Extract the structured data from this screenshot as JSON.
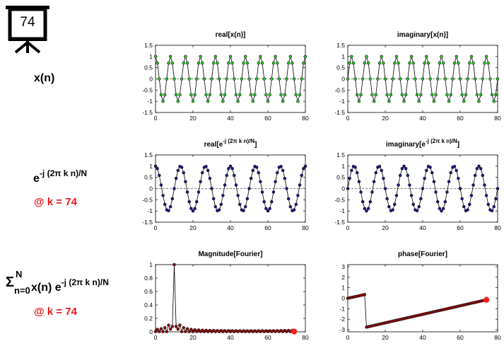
{
  "frame_counter": "74",
  "row_labels": {
    "signal": "x(n)",
    "kernel_base": "e",
    "kernel_exp": "-j (2π k n)/N",
    "kernel_k": "@ k = 74",
    "sum_sym": "Σ",
    "sum_upper": "N",
    "sum_lower": "n=0",
    "sum_body": " x(n) e",
    "sum_exp": "-j (2π k n)/N",
    "sum_k": "@ k = 74"
  },
  "colors": {
    "signal": "#2fc52f",
    "kernel": "#1c1c8a",
    "fourier": "#8b1010",
    "highlight": "#ff2020",
    "line": "#000000",
    "zero_line": "#555555"
  },
  "chart_data": [
    {
      "id": "real-x",
      "type": "line",
      "title": "real[x(n)]",
      "xlim": [
        0,
        80
      ],
      "ylim": [
        -1.5,
        1.5
      ],
      "xticks": [
        0,
        20,
        40,
        60,
        80
      ],
      "yticks": [
        -1.5,
        -1,
        -0.5,
        0,
        0.5,
        1,
        1.5
      ],
      "yticklabels": [
        "-1.5",
        "-1",
        "-0.5",
        "0",
        "0.5",
        "1",
        "1.5"
      ],
      "zero_line": true,
      "series": [
        {
          "fn": "cos",
          "cycles": 10,
          "points": 81
        }
      ]
    },
    {
      "id": "imag-x",
      "type": "line",
      "title": "imaginary[x(n)]",
      "xlim": [
        0,
        80
      ],
      "ylim": [
        -1.5,
        1.5
      ],
      "xticks": [
        0,
        20,
        40,
        60,
        80
      ],
      "yticks": [
        -1.5,
        -1,
        -0.5,
        0,
        0.5,
        1,
        1.5
      ],
      "yticklabels": [
        "-1.5",
        "-1",
        "-0.5",
        "0",
        "0.5",
        "1",
        "1.5"
      ],
      "zero_line": true,
      "series": [
        {
          "fn": "sin",
          "cycles": 10,
          "points": 81
        }
      ]
    },
    {
      "id": "real-k",
      "type": "line",
      "title_base": "real[e",
      "title_sup": "-j (2π k n)/N",
      "title_end": "]",
      "xlim": [
        0,
        80
      ],
      "ylim": [
        -1.5,
        1.5
      ],
      "xticks": [
        0,
        20,
        40,
        60,
        80
      ],
      "yticks": [
        -1.5,
        -1,
        -0.5,
        0,
        0.5,
        1,
        1.5
      ],
      "yticklabels": [
        "-1.5",
        "-1",
        "-0.5",
        "0",
        "0.5",
        "1",
        "1.5"
      ],
      "zero_line": true,
      "series": [
        {
          "fn": "cos",
          "cycles": 6,
          "points": 81
        }
      ]
    },
    {
      "id": "imag-k",
      "type": "line",
      "title_base": "imaginary[e",
      "title_sup": "-j (2π k n)/N",
      "title_end": "]",
      "xlim": [
        0,
        80
      ],
      "ylim": [
        -1.5,
        1.5
      ],
      "xticks": [
        0,
        20,
        40,
        60,
        80
      ],
      "yticks": [
        -1.5,
        -1,
        -0.5,
        0,
        0.5,
        1,
        1.5
      ],
      "yticklabels": [
        "-1.5",
        "-1",
        "-0.5",
        "0",
        "0.5",
        "1",
        "1.5"
      ],
      "zero_line": true,
      "series": [
        {
          "fn": "sin",
          "cycles": 6,
          "points": 81
        }
      ]
    },
    {
      "id": "mag-f",
      "type": "line",
      "title": "Magnitude[Fourier]",
      "xlim": [
        0,
        80
      ],
      "ylim": [
        0,
        1
      ],
      "xticks": [
        0,
        20,
        40,
        60,
        80
      ],
      "yticks": [
        0,
        0.2,
        0.4,
        0.6,
        0.8,
        1
      ],
      "yticklabels": [
        "0",
        "0.2",
        "0.4",
        "0.6",
        "0.8",
        "1"
      ],
      "zero_line": false,
      "series": [
        {
          "fn": "mag",
          "peak": 10,
          "points": 75
        }
      ],
      "highlight": {
        "x": 74,
        "y": 0.005
      }
    },
    {
      "id": "phase-f",
      "type": "line",
      "title": "phase[Fourier]",
      "xlim": [
        0,
        80
      ],
      "ylim": [
        -3.2,
        3.2
      ],
      "xticks": [
        0,
        20,
        40,
        60,
        80
      ],
      "yticks": [
        -3,
        -2,
        -1,
        0,
        1,
        2,
        3
      ],
      "yticklabels": [
        "-3",
        "-2",
        "-1",
        "0",
        "1",
        "2",
        "3"
      ],
      "zero_line": false,
      "series": [
        {
          "fn": "phase",
          "peak": 10,
          "points": 75,
          "start": 0.0,
          "pre_end": 0.35,
          "post_start": -2.75,
          "end": -0.15
        }
      ],
      "highlight": {
        "x": 74,
        "y": -0.15
      }
    }
  ]
}
